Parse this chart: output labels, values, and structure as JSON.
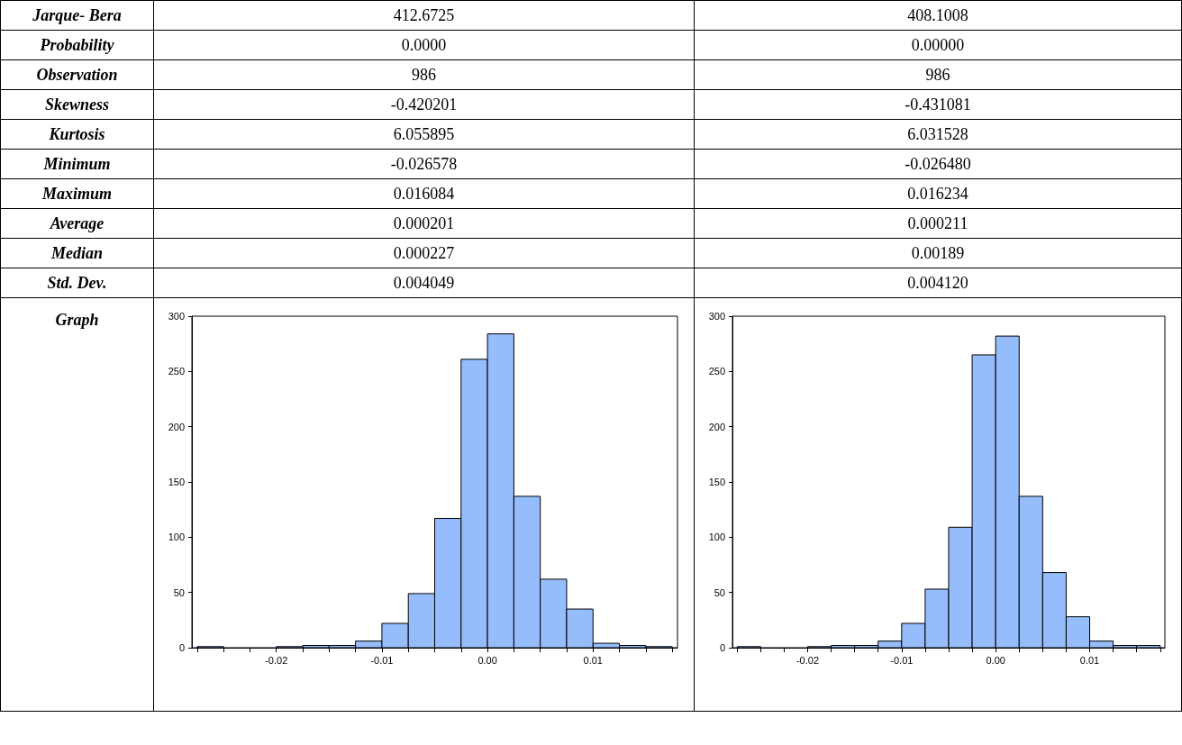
{
  "chart_data": [
    {
      "type": "other",
      "categories": [
        "Jarque- Bera",
        "Probability",
        "Observation",
        "Skewness",
        "Kurtosis",
        "Minimum",
        "Maximum",
        "Average",
        "Median",
        "Std. Dev.",
        "Graph"
      ],
      "series": [
        {
          "values": [
            null,
            null,
            null,
            null,
            null,
            null,
            null,
            null,
            null,
            null,
            null
          ],
          "value_labels": [
            "412.6725",
            "0.0000",
            "986",
            "-0.420201",
            "6.055895",
            "-0.026578",
            "0.016084",
            "0.000201",
            "0.000227",
            "0.004049",
            null
          ]
        },
        {
          "values": [
            null,
            null,
            null,
            null,
            null,
            null,
            null,
            null,
            null,
            null,
            null
          ],
          "value_labels": [
            "408.1008",
            "0.00000",
            "986",
            "-0.431081",
            "6.031528",
            "-0.026480",
            "0.016234",
            "0.000211",
            "0.00189",
            "0.004120",
            null
          ]
        }
      ]
    },
    {
      "type": "histogram",
      "color": "#96bdfb",
      "bins": [
        -0.0275,
        -0.025,
        -0.0225,
        -0.02,
        -0.0175,
        -0.015,
        -0.0125,
        -0.01,
        -0.0075,
        -0.005,
        -0.0025,
        0,
        0.0025,
        0.005,
        0.0075,
        0.01,
        0.0125,
        0.015,
        0.0175
      ],
      "values": [
        1,
        0,
        0,
        1,
        2,
        2,
        6,
        22,
        49,
        117,
        261,
        284,
        137,
        62,
        35,
        4,
        2,
        1
      ],
      "xlim": [
        -0.028,
        0.018
      ],
      "ylim": [
        0,
        300
      ],
      "yticks": [
        0,
        50,
        100,
        150,
        200,
        250,
        300
      ],
      "xticks": [
        {
          "value": -0.0275,
          "label": null
        },
        {
          "value": -0.025,
          "label": null
        },
        {
          "value": -0.0225,
          "label": null
        },
        {
          "value": -0.02,
          "label": "-0.02"
        },
        {
          "value": -0.0175,
          "label": null
        },
        {
          "value": -0.015,
          "label": null
        },
        {
          "value": -0.0125,
          "label": null
        },
        {
          "value": -0.01,
          "label": "-0.01"
        },
        {
          "value": -0.0075,
          "label": null
        },
        {
          "value": -0.005,
          "label": null
        },
        {
          "value": -0.0025,
          "label": null
        },
        {
          "value": 0,
          "label": "0.00"
        },
        {
          "value": 0.0025,
          "label": null
        },
        {
          "value": 0.005,
          "label": null
        },
        {
          "value": 0.0075,
          "label": null
        },
        {
          "value": 0.01,
          "label": "0.01"
        },
        {
          "value": 0.0125,
          "label": null
        },
        {
          "value": 0.015,
          "label": null
        },
        {
          "value": 0.0175,
          "label": null
        }
      ]
    },
    {
      "type": "histogram",
      "color": "#96bdfb",
      "bins": [
        -0.0275,
        -0.025,
        -0.0225,
        -0.02,
        -0.0175,
        -0.015,
        -0.0125,
        -0.01,
        -0.0075,
        -0.005,
        -0.0025,
        0,
        0.0025,
        0.005,
        0.0075,
        0.01,
        0.0125,
        0.015,
        0.0175
      ],
      "values": [
        1,
        0,
        0,
        1,
        2,
        2,
        6,
        22,
        53,
        109,
        265,
        282,
        137,
        68,
        28,
        6,
        2,
        2
      ],
      "xlim": [
        -0.028,
        0.018
      ],
      "ylim": [
        0,
        300
      ],
      "yticks": [
        0,
        50,
        100,
        150,
        200,
        250,
        300
      ],
      "xticks": [
        {
          "value": -0.0275,
          "label": null
        },
        {
          "value": -0.025,
          "label": null
        },
        {
          "value": -0.0225,
          "label": null
        },
        {
          "value": -0.02,
          "label": "-0.02"
        },
        {
          "value": -0.0175,
          "label": null
        },
        {
          "value": -0.015,
          "label": null
        },
        {
          "value": -0.0125,
          "label": null
        },
        {
          "value": -0.01,
          "label": "-0.01"
        },
        {
          "value": -0.0075,
          "label": null
        },
        {
          "value": -0.005,
          "label": null
        },
        {
          "value": -0.0025,
          "label": null
        },
        {
          "value": 0,
          "label": "0.00"
        },
        {
          "value": 0.0025,
          "label": null
        },
        {
          "value": 0.005,
          "label": null
        },
        {
          "value": 0.0075,
          "label": null
        },
        {
          "value": 0.01,
          "label": "0.01"
        },
        {
          "value": 0.0125,
          "label": null
        },
        {
          "value": 0.015,
          "label": null
        },
        {
          "value": 0.0175,
          "label": null
        }
      ]
    }
  ]
}
